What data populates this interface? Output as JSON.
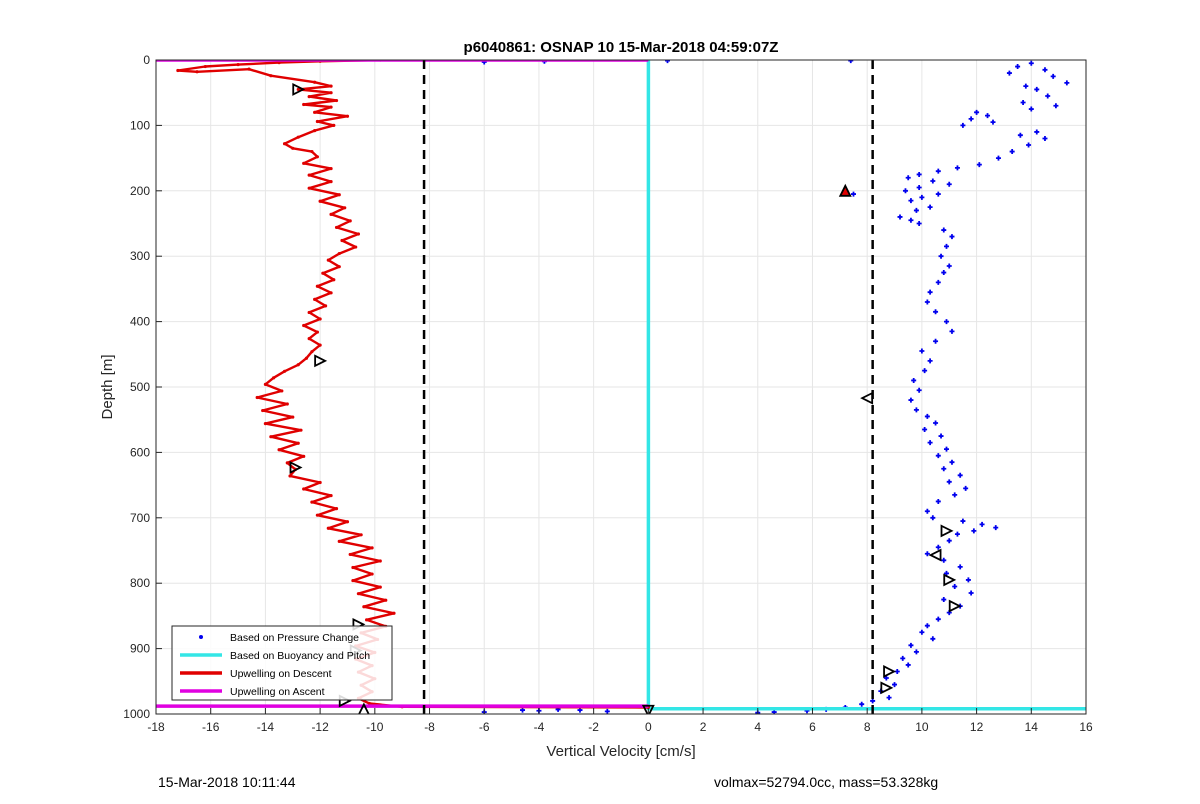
{
  "chart_data": {
    "type": "scatter",
    "title": "p6040861: OSNAP 10 15-Mar-2018 04:59:07Z",
    "xlabel": "Vertical Velocity [cm/s]",
    "ylabel": "Depth [m]",
    "xlim": [
      -18,
      16
    ],
    "ylim": [
      1000,
      0
    ],
    "y_reversed": true,
    "grid": true,
    "x_ticks": [
      -18,
      -16,
      -14,
      -12,
      -10,
      -8,
      -6,
      -4,
      -2,
      0,
      2,
      4,
      6,
      8,
      10,
      12,
      14,
      16
    ],
    "y_ticks": [
      0,
      100,
      200,
      300,
      400,
      500,
      600,
      700,
      800,
      900,
      1000
    ],
    "legend": {
      "placement": "bottom-left",
      "entries": [
        {
          "label": "Based on Pressure Change",
          "color": "#0000ee",
          "style": "dot"
        },
        {
          "label": "Based on Buoyancy and Pitch",
          "color": "#33e6e6",
          "style": "line"
        },
        {
          "label": "Upwelling on Descent",
          "color": "#e00000",
          "style": "line"
        },
        {
          "label": "Upwelling on Ascent",
          "color": "#e000e0",
          "style": "line"
        }
      ]
    },
    "reference_lines": [
      {
        "x": -8.2,
        "style": "dashed",
        "color": "#000000"
      },
      {
        "x": 8.2,
        "style": "dashed",
        "color": "#000000"
      }
    ],
    "series": [
      {
        "name": "Based on Pressure Change",
        "kind": "scatter",
        "color": "#0000ee",
        "points": [
          [
            14.0,
            5
          ],
          [
            13.5,
            10
          ],
          [
            14.5,
            15
          ],
          [
            13.2,
            20
          ],
          [
            14.8,
            25
          ],
          [
            15.3,
            35
          ],
          [
            13.8,
            40
          ],
          [
            14.2,
            45
          ],
          [
            14.6,
            55
          ],
          [
            13.7,
            65
          ],
          [
            14.9,
            70
          ],
          [
            14.0,
            75
          ],
          [
            12.0,
            80
          ],
          [
            12.4,
            85
          ],
          [
            11.8,
            90
          ],
          [
            12.6,
            95
          ],
          [
            11.5,
            100
          ],
          [
            14.2,
            110
          ],
          [
            13.6,
            115
          ],
          [
            14.5,
            120
          ],
          [
            13.9,
            130
          ],
          [
            13.3,
            140
          ],
          [
            12.8,
            150
          ],
          [
            12.1,
            160
          ],
          [
            11.3,
            165
          ],
          [
            10.6,
            170
          ],
          [
            9.9,
            175
          ],
          [
            9.5,
            180
          ],
          [
            10.4,
            185
          ],
          [
            11.0,
            190
          ],
          [
            9.9,
            195
          ],
          [
            9.4,
            200
          ],
          [
            10.6,
            205
          ],
          [
            10.0,
            210
          ],
          [
            9.6,
            215
          ],
          [
            10.3,
            225
          ],
          [
            9.8,
            230
          ],
          [
            9.2,
            240
          ],
          [
            9.6,
            245
          ],
          [
            9.9,
            250
          ],
          [
            10.8,
            260
          ],
          [
            11.1,
            270
          ],
          [
            10.9,
            285
          ],
          [
            10.7,
            300
          ],
          [
            11.0,
            315
          ],
          [
            10.8,
            325
          ],
          [
            10.6,
            340
          ],
          [
            10.3,
            355
          ],
          [
            10.2,
            370
          ],
          [
            10.5,
            385
          ],
          [
            10.9,
            400
          ],
          [
            11.1,
            415
          ],
          [
            10.5,
            430
          ],
          [
            10.0,
            445
          ],
          [
            10.3,
            460
          ],
          [
            10.1,
            475
          ],
          [
            9.7,
            490
          ],
          [
            9.9,
            505
          ],
          [
            9.6,
            520
          ],
          [
            9.8,
            535
          ],
          [
            10.2,
            545
          ],
          [
            10.5,
            555
          ],
          [
            10.1,
            565
          ],
          [
            10.7,
            575
          ],
          [
            10.3,
            585
          ],
          [
            10.9,
            595
          ],
          [
            10.6,
            605
          ],
          [
            11.1,
            615
          ],
          [
            10.8,
            625
          ],
          [
            11.4,
            635
          ],
          [
            11.0,
            645
          ],
          [
            11.6,
            655
          ],
          [
            11.2,
            665
          ],
          [
            10.6,
            675
          ],
          [
            10.2,
            690
          ],
          [
            10.4,
            700
          ],
          [
            11.5,
            705
          ],
          [
            12.2,
            710
          ],
          [
            12.7,
            715
          ],
          [
            11.9,
            720
          ],
          [
            11.3,
            725
          ],
          [
            11.0,
            735
          ],
          [
            10.6,
            745
          ],
          [
            10.2,
            755
          ],
          [
            10.8,
            765
          ],
          [
            11.4,
            775
          ],
          [
            10.9,
            785
          ],
          [
            11.7,
            795
          ],
          [
            11.2,
            805
          ],
          [
            11.8,
            815
          ],
          [
            10.8,
            825
          ],
          [
            11.4,
            835
          ],
          [
            11.0,
            845
          ],
          [
            10.6,
            855
          ],
          [
            10.2,
            865
          ],
          [
            10.0,
            875
          ],
          [
            10.4,
            885
          ],
          [
            9.6,
            895
          ],
          [
            9.8,
            905
          ],
          [
            9.3,
            915
          ],
          [
            9.5,
            925
          ],
          [
            9.1,
            935
          ],
          [
            8.7,
            945
          ],
          [
            9.0,
            955
          ],
          [
            8.5,
            965
          ],
          [
            8.8,
            975
          ],
          [
            8.2,
            980
          ],
          [
            7.8,
            985
          ],
          [
            7.2,
            990
          ],
          [
            6.5,
            993
          ],
          [
            5.8,
            995
          ],
          [
            4.6,
            997
          ],
          [
            4.0,
            998
          ],
          [
            -1.5,
            996
          ],
          [
            -2.5,
            994
          ],
          [
            -3.3,
            993
          ],
          [
            -4.0,
            995
          ],
          [
            -4.6,
            994
          ],
          [
            -6.0,
            997
          ],
          [
            -3.8,
            2
          ],
          [
            -6.0,
            3
          ],
          [
            0.7,
            1
          ],
          [
            7.4,
            1
          ],
          [
            7.2,
            200
          ],
          [
            7.5,
            205
          ]
        ]
      },
      {
        "name": "Based on Buoyancy and Pitch",
        "kind": "line",
        "color": "#33e6e6",
        "points": [
          [
            0,
            0
          ],
          [
            0,
            990
          ],
          [
            0,
            992
          ],
          [
            16,
            992
          ]
        ]
      },
      {
        "name": "Upwelling on Descent",
        "kind": "line",
        "color": "#e00000",
        "points": [
          [
            -9.8,
            0
          ],
          [
            -12.0,
            2
          ],
          [
            -13.5,
            4
          ],
          [
            -15.0,
            7
          ],
          [
            -16.2,
            10
          ],
          [
            -17.2,
            16
          ],
          [
            -16.5,
            18
          ],
          [
            -14.6,
            14
          ],
          [
            -13.8,
            24
          ],
          [
            -12.2,
            34
          ],
          [
            -11.6,
            40
          ],
          [
            -12.8,
            45
          ],
          [
            -11.6,
            50
          ],
          [
            -12.4,
            56
          ],
          [
            -11.4,
            62
          ],
          [
            -12.6,
            68
          ],
          [
            -11.6,
            72
          ],
          [
            -12.2,
            80
          ],
          [
            -11.0,
            86
          ],
          [
            -12.1,
            94
          ],
          [
            -11.5,
            100
          ],
          [
            -12.2,
            108
          ],
          [
            -12.8,
            118
          ],
          [
            -13.3,
            128
          ],
          [
            -13.0,
            135
          ],
          [
            -12.3,
            140
          ],
          [
            -12.1,
            148
          ],
          [
            -12.6,
            158
          ],
          [
            -11.6,
            166
          ],
          [
            -12.4,
            176
          ],
          [
            -11.6,
            186
          ],
          [
            -12.4,
            196
          ],
          [
            -11.3,
            206
          ],
          [
            -12.0,
            216
          ],
          [
            -11.1,
            226
          ],
          [
            -11.6,
            236
          ],
          [
            -10.9,
            246
          ],
          [
            -11.4,
            256
          ],
          [
            -10.6,
            266
          ],
          [
            -11.2,
            276
          ],
          [
            -10.7,
            286
          ],
          [
            -11.3,
            296
          ],
          [
            -11.7,
            306
          ],
          [
            -11.3,
            316
          ],
          [
            -11.9,
            326
          ],
          [
            -11.5,
            336
          ],
          [
            -12.1,
            346
          ],
          [
            -11.6,
            356
          ],
          [
            -12.2,
            366
          ],
          [
            -11.8,
            376
          ],
          [
            -12.4,
            386
          ],
          [
            -12.0,
            396
          ],
          [
            -12.6,
            406
          ],
          [
            -12.1,
            416
          ],
          [
            -12.4,
            426
          ],
          [
            -12.0,
            436
          ],
          [
            -12.3,
            446
          ],
          [
            -12.5,
            456
          ],
          [
            -12.8,
            466
          ],
          [
            -13.3,
            476
          ],
          [
            -13.7,
            486
          ],
          [
            -14.0,
            496
          ],
          [
            -13.4,
            506
          ],
          [
            -14.3,
            516
          ],
          [
            -13.2,
            526
          ],
          [
            -14.1,
            536
          ],
          [
            -13.0,
            546
          ],
          [
            -14.0,
            556
          ],
          [
            -12.7,
            566
          ],
          [
            -13.8,
            576
          ],
          [
            -12.8,
            586
          ],
          [
            -13.5,
            596
          ],
          [
            -12.6,
            606
          ],
          [
            -13.2,
            616
          ],
          [
            -12.9,
            626
          ],
          [
            -13.1,
            636
          ],
          [
            -12.0,
            646
          ],
          [
            -12.6,
            656
          ],
          [
            -11.6,
            666
          ],
          [
            -12.3,
            676
          ],
          [
            -11.4,
            686
          ],
          [
            -12.1,
            696
          ],
          [
            -11.0,
            706
          ],
          [
            -11.7,
            716
          ],
          [
            -10.5,
            726
          ],
          [
            -11.3,
            736
          ],
          [
            -10.1,
            746
          ],
          [
            -10.9,
            756
          ],
          [
            -9.8,
            766
          ],
          [
            -10.8,
            776
          ],
          [
            -10.1,
            786
          ],
          [
            -10.8,
            796
          ],
          [
            -9.8,
            806
          ],
          [
            -10.6,
            816
          ],
          [
            -9.6,
            826
          ],
          [
            -10.4,
            836
          ],
          [
            -9.3,
            846
          ],
          [
            -10.3,
            856
          ],
          [
            -9.6,
            866
          ],
          [
            -10.5,
            876
          ],
          [
            -9.9,
            886
          ],
          [
            -10.7,
            896
          ],
          [
            -10.0,
            906
          ],
          [
            -10.7,
            916
          ],
          [
            -10.1,
            926
          ],
          [
            -10.6,
            936
          ],
          [
            -10.0,
            946
          ],
          [
            -10.5,
            956
          ],
          [
            -10.1,
            966
          ],
          [
            -10.6,
            976
          ],
          [
            -10.2,
            984
          ],
          [
            -9.0,
            989
          ],
          [
            0,
            990
          ]
        ]
      },
      {
        "name": "Upwelling on Ascent",
        "kind": "line",
        "color": "#e000e0",
        "points": [
          [
            -18,
            0
          ],
          [
            0,
            0
          ],
          [
            -18,
            988
          ],
          [
            0,
            988
          ]
        ]
      },
      {
        "name": "Markers",
        "kind": "markers",
        "color": "#000000",
        "points": [
          {
            "x": -12.8,
            "y": 45,
            "dir": "right"
          },
          {
            "x": -12.0,
            "y": 460,
            "dir": "right"
          },
          {
            "x": -12.9,
            "y": 623,
            "dir": "right"
          },
          {
            "x": -10.6,
            "y": 863,
            "dir": "right"
          },
          {
            "x": -10.7,
            "y": 903,
            "dir": "right"
          },
          {
            "x": -11.1,
            "y": 980,
            "dir": "right"
          },
          {
            "x": -10.4,
            "y": 993,
            "dir": "up"
          },
          {
            "x": 0.0,
            "y": 995,
            "dir": "down"
          },
          {
            "x": 7.2,
            "y": 200,
            "dir": "up",
            "fill": "#e00000"
          },
          {
            "x": 8.0,
            "y": 517,
            "dir": "left"
          },
          {
            "x": 10.9,
            "y": 720,
            "dir": "right"
          },
          {
            "x": 10.5,
            "y": 757,
            "dir": "left"
          },
          {
            "x": 11.0,
            "y": 795,
            "dir": "right"
          },
          {
            "x": 11.2,
            "y": 835,
            "dir": "right"
          },
          {
            "x": 8.8,
            "y": 935,
            "dir": "right"
          },
          {
            "x": 8.7,
            "y": 960,
            "dir": "right"
          }
        ]
      }
    ]
  },
  "footer": {
    "left": "15-Mar-2018 10:11:44",
    "right": "volmax=52794.0cc, mass=53.328kg"
  }
}
